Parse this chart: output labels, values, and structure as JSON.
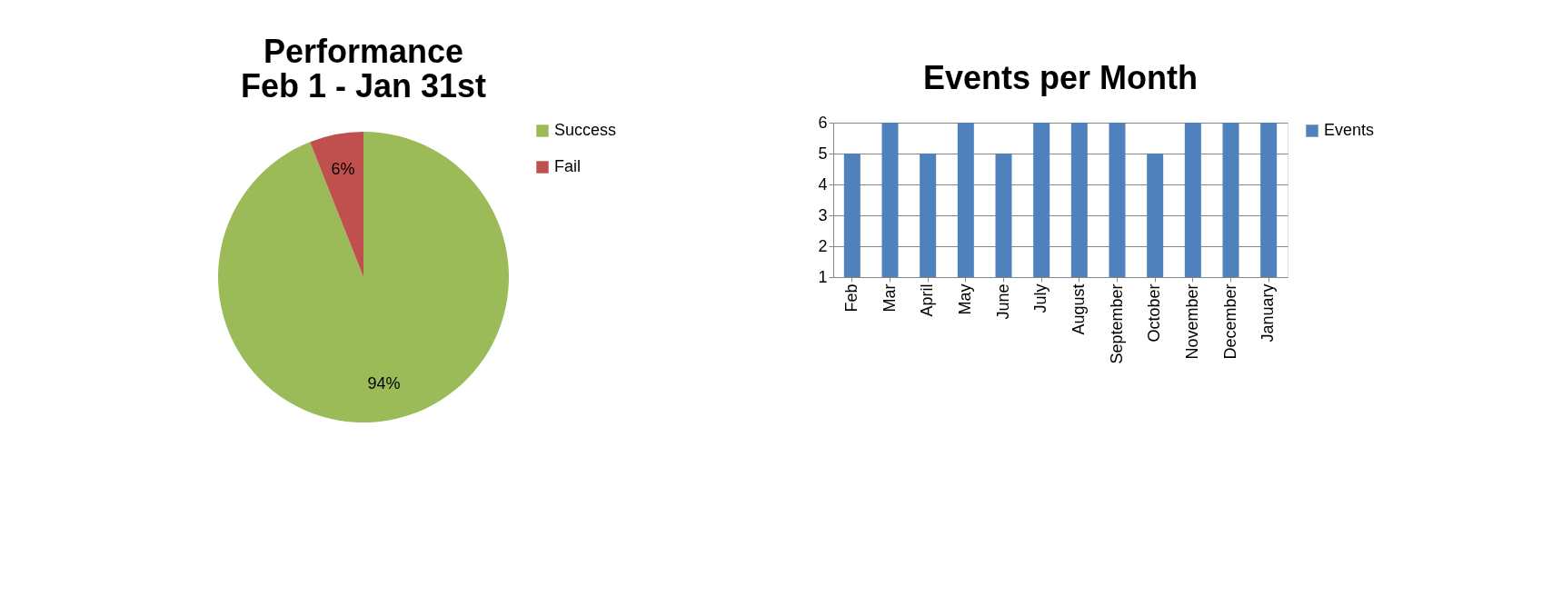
{
  "chart_data": [
    {
      "type": "pie",
      "title": "Performance\nFeb 1 - Jan 31st",
      "categories": [
        "Success",
        "Fail"
      ],
      "values": [
        94,
        6
      ],
      "colors": [
        "#9bbb59",
        "#c0504d"
      ],
      "value_labels": [
        "94%",
        "6%"
      ],
      "legend": "right"
    },
    {
      "type": "bar",
      "title": "Events per Month",
      "categories": [
        "Feb",
        "Mar",
        "April",
        "May",
        "June",
        "July",
        "August",
        "September",
        "October",
        "November",
        "December",
        "January"
      ],
      "series": [
        {
          "name": "Events",
          "color": "#4f81bd",
          "values": [
            5,
            6,
            5,
            6,
            5,
            6,
            6,
            6,
            5,
            6,
            6,
            6
          ]
        }
      ],
      "ylim": [
        1,
        6
      ],
      "yticks": [
        1,
        2,
        3,
        4,
        5,
        6
      ],
      "grid": "y",
      "legend": "right"
    }
  ]
}
